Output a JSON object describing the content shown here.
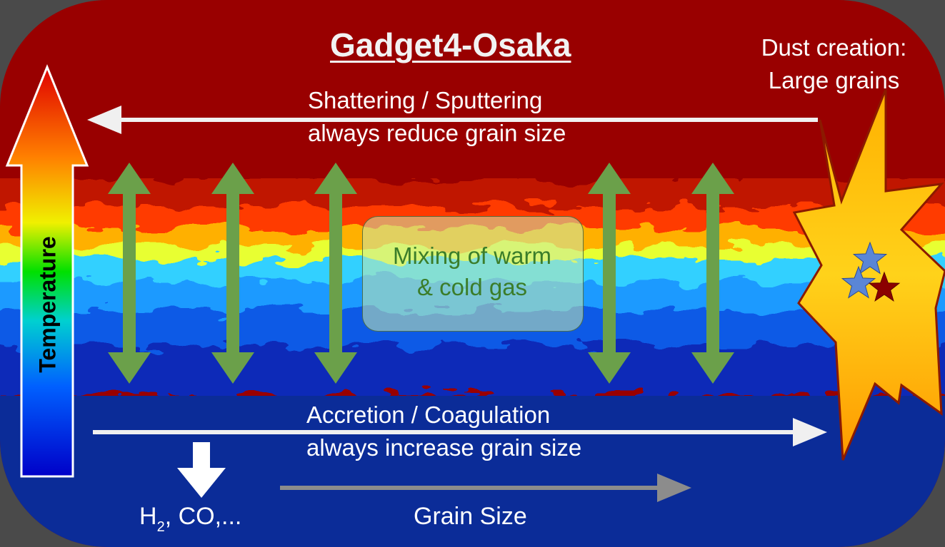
{
  "title": "Gadget4-Osaka",
  "top_process": {
    "line1": "Shattering / Sputtering",
    "line2": "always reduce grain size"
  },
  "bottom_process": {
    "line1": "Accretion / Coagulation",
    "line2": "always increase grain size"
  },
  "dust_creation": {
    "line1": "Dust creation:",
    "line2": "Large grains"
  },
  "mixing": {
    "line1": "Mixing of warm",
    "line2": "& cold gas"
  },
  "temperature_axis_label": "Temperature",
  "grain_size_label": "Grain Size",
  "molecules": {
    "h": "H",
    "subscript": "2",
    "rest": ", CO,..."
  },
  "colors": {
    "hot_gas": "#990000",
    "cold_gas": "#0a2a96",
    "background": "#4a4a4a",
    "mixing_arrows": "#6ba04a",
    "process_arrows": "#f0f0f0",
    "grain_size_arrow": "#8c8c8c",
    "explosion_fill": "#ffc21a",
    "explosion_stroke": "#8b1a00",
    "star_blue": "#5a86d6",
    "star_red": "#8b0000"
  },
  "icons": {
    "temperature_gradient_arrow": "up-arrow-icon",
    "explosion": "starburst-icon",
    "stars": "star-icon",
    "down_arrow": "down-arrow-icon"
  }
}
